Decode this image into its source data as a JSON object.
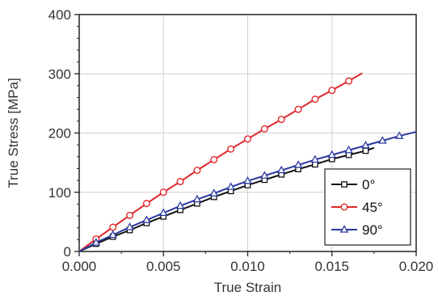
{
  "chart_data": {
    "type": "line",
    "title": "",
    "xlabel": "True Strain",
    "ylabel": "True Stress [MPa]",
    "xlim": [
      0.0,
      0.02
    ],
    "ylim": [
      0,
      400
    ],
    "xticks": [
      0.0,
      0.005,
      0.01,
      0.015,
      0.02
    ],
    "xtick_labels": [
      "0.000",
      "0.005",
      "0.010",
      "0.015",
      "0.020"
    ],
    "yticks": [
      0,
      100,
      200,
      300,
      400
    ],
    "ytick_labels": [
      "0",
      "100",
      "200",
      "300",
      "400"
    ],
    "grid": true,
    "legend_position": "bottom-right",
    "series": [
      {
        "name": "0°",
        "color": "#111111",
        "marker": "square",
        "x": [
          0.0,
          0.001,
          0.002,
          0.003,
          0.004,
          0.005,
          0.006,
          0.007,
          0.008,
          0.009,
          0.01,
          0.011,
          0.012,
          0.013,
          0.014,
          0.015,
          0.016,
          0.017,
          0.0175
        ],
        "y": [
          0,
          13,
          25,
          36,
          48,
          59,
          70,
          81,
          92,
          102,
          112,
          121,
          130,
          139,
          147,
          156,
          163,
          170,
          175
        ]
      },
      {
        "name": "45°",
        "color": "#e0262b",
        "marker": "circle",
        "x": [
          0.0,
          0.001,
          0.002,
          0.003,
          0.004,
          0.005,
          0.006,
          0.007,
          0.008,
          0.009,
          0.01,
          0.011,
          0.012,
          0.013,
          0.014,
          0.015,
          0.016,
          0.0168
        ],
        "y": [
          0,
          21,
          41,
          61,
          81,
          100,
          118,
          137,
          155,
          173,
          190,
          207,
          223,
          240,
          257,
          272,
          288,
          301
        ]
      },
      {
        "name": "90°",
        "color": "#2b3a9e",
        "marker": "triangle",
        "x": [
          0.0,
          0.001,
          0.002,
          0.003,
          0.004,
          0.005,
          0.006,
          0.007,
          0.008,
          0.009,
          0.01,
          0.011,
          0.012,
          0.013,
          0.014,
          0.015,
          0.016,
          0.017,
          0.018,
          0.019,
          0.02
        ],
        "y": [
          0,
          15,
          28,
          41,
          53,
          65,
          77,
          88,
          98,
          109,
          119,
          128,
          137,
          146,
          155,
          163,
          171,
          179,
          187,
          195,
          202
        ]
      }
    ]
  }
}
